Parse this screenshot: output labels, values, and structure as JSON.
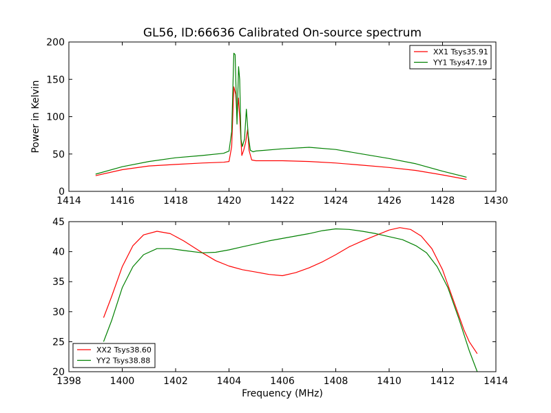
{
  "chart_data": [
    {
      "type": "line",
      "title": "GL56, ID:66636 Calibrated On-source spectrum",
      "xlabel": "",
      "ylabel": "Power in Kelvin",
      "xlim": [
        1414,
        1430
      ],
      "ylim": [
        0,
        200
      ],
      "xticks": [
        1414,
        1416,
        1418,
        1420,
        1422,
        1424,
        1426,
        1428,
        1430
      ],
      "yticks": [
        0,
        50,
        100,
        150,
        200
      ],
      "grid": false,
      "legend": "top-right",
      "series": [
        {
          "name": "XX1 Tsys35.91",
          "color": "#ff0000",
          "x": [
            1415.0,
            1416.0,
            1417.0,
            1418.0,
            1419.0,
            1419.8,
            1420.0,
            1420.1,
            1420.18,
            1420.25,
            1420.3,
            1420.35,
            1420.4,
            1420.48,
            1420.55,
            1420.62,
            1420.7,
            1420.75,
            1420.85,
            1421.0,
            1422.0,
            1423.0,
            1424.0,
            1425.0,
            1426.0,
            1427.0,
            1428.0,
            1428.9
          ],
          "y": [
            21,
            29,
            34,
            36,
            38,
            39,
            40,
            60,
            140,
            130,
            100,
            125,
            100,
            48,
            55,
            65,
            83,
            55,
            42,
            41,
            41,
            40,
            38,
            35,
            32,
            28,
            22,
            16
          ]
        },
        {
          "name": "YY1 Tsys47.19",
          "color": "#008000",
          "x": [
            1415.0,
            1416.0,
            1417.0,
            1418.0,
            1419.0,
            1419.8,
            1420.0,
            1420.1,
            1420.18,
            1420.23,
            1420.3,
            1420.36,
            1420.4,
            1420.45,
            1420.5,
            1420.58,
            1420.65,
            1420.72,
            1420.8,
            1420.9,
            1421.0,
            1422.0,
            1423.0,
            1424.0,
            1425.0,
            1426.0,
            1427.0,
            1428.0,
            1428.9
          ],
          "y": [
            23,
            33,
            40,
            45,
            48,
            51,
            54,
            80,
            185,
            183,
            90,
            167,
            150,
            70,
            60,
            70,
            110,
            75,
            55,
            53,
            54,
            57,
            59,
            56,
            50,
            44,
            37,
            27,
            19
          ]
        }
      ]
    },
    {
      "type": "line",
      "title": "",
      "xlabel": "Frequency (MHz)",
      "ylabel": "",
      "xlim": [
        1398,
        1414
      ],
      "ylim": [
        20,
        45
      ],
      "xticks": [
        1398,
        1400,
        1402,
        1404,
        1406,
        1408,
        1410,
        1412,
        1414
      ],
      "yticks": [
        20,
        25,
        30,
        35,
        40,
        45
      ],
      "grid": false,
      "legend": "bottom-left",
      "series": [
        {
          "name": "XX2 Tsys38.60",
          "color": "#ff0000",
          "x": [
            1399.3,
            1399.6,
            1400.0,
            1400.4,
            1400.8,
            1401.3,
            1401.8,
            1402.3,
            1403.0,
            1403.5,
            1404.0,
            1404.5,
            1405.0,
            1405.5,
            1406.0,
            1406.5,
            1407.0,
            1407.5,
            1408.0,
            1408.5,
            1409.0,
            1409.5,
            1410.0,
            1410.4,
            1410.8,
            1411.2,
            1411.6,
            1412.0,
            1412.4,
            1412.8,
            1413.0,
            1413.3
          ],
          "y": [
            29.0,
            32.5,
            37.5,
            41.0,
            42.8,
            43.4,
            43.0,
            41.8,
            39.8,
            38.5,
            37.6,
            37.0,
            36.6,
            36.2,
            36.0,
            36.5,
            37.3,
            38.3,
            39.5,
            40.8,
            41.8,
            42.7,
            43.6,
            44.0,
            43.7,
            42.6,
            40.5,
            37.0,
            32.0,
            27.0,
            25.0,
            23.0
          ]
        },
        {
          "name": "YY2 Tsys38.88",
          "color": "#008000",
          "x": [
            1399.3,
            1399.6,
            1400.0,
            1400.4,
            1400.8,
            1401.3,
            1401.8,
            1402.3,
            1403.0,
            1403.5,
            1404.0,
            1404.5,
            1405.0,
            1405.5,
            1406.0,
            1406.5,
            1407.0,
            1407.5,
            1408.0,
            1408.5,
            1409.0,
            1409.5,
            1410.0,
            1410.5,
            1411.0,
            1411.4,
            1411.8,
            1412.2,
            1412.6,
            1413.0,
            1413.3
          ],
          "y": [
            25.0,
            28.5,
            34.0,
            37.5,
            39.5,
            40.5,
            40.5,
            40.2,
            39.8,
            39.9,
            40.3,
            40.8,
            41.3,
            41.8,
            42.2,
            42.6,
            43.0,
            43.5,
            43.8,
            43.7,
            43.4,
            43.0,
            42.5,
            42.0,
            41.0,
            39.8,
            37.5,
            34.0,
            29.0,
            23.5,
            20.0
          ]
        }
      ]
    }
  ]
}
